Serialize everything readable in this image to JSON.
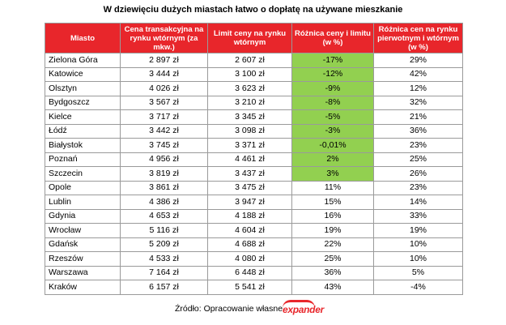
{
  "title": "W dziewięciu dużych miastach łatwo o dopłatę na używane mieszkanie",
  "colors": {
    "header_bg": "#e8262b",
    "header_text": "#ffffff",
    "highlight_green": "#92d050",
    "brand_red": "#e8262b",
    "border": "#9a9a9a"
  },
  "table": {
    "headers": [
      "Miasto",
      "Cena transakcyjna na rynku wtórnym (za mkw.)",
      "Limit ceny na rynku wtórnym",
      "Różnica ceny i limitu (w %)",
      "Różnica cen na rynku pierwotnym i wtórnym (w %)"
    ],
    "rows": [
      {
        "city": "Zielona Góra",
        "price": "2 897 zł",
        "limit": "2 607 zł",
        "diff": "-17%",
        "diff_primary": "29%",
        "highlight": true
      },
      {
        "city": "Katowice",
        "price": "3 444 zł",
        "limit": "3 100 zł",
        "diff": "-12%",
        "diff_primary": "42%",
        "highlight": true
      },
      {
        "city": "Olsztyn",
        "price": "4 026 zł",
        "limit": "3 623 zł",
        "diff": "-9%",
        "diff_primary": "12%",
        "highlight": true
      },
      {
        "city": "Bydgoszcz",
        "price": "3 567 zł",
        "limit": "3 210 zł",
        "diff": "-8%",
        "diff_primary": "32%",
        "highlight": true
      },
      {
        "city": "Kielce",
        "price": "3 717 zł",
        "limit": "3 345 zł",
        "diff": "-5%",
        "diff_primary": "21%",
        "highlight": true
      },
      {
        "city": "Łódź",
        "price": "3 442 zł",
        "limit": "3 098 zł",
        "diff": "-3%",
        "diff_primary": "36%",
        "highlight": true
      },
      {
        "city": "Białystok",
        "price": "3 745 zł",
        "limit": "3 371 zł",
        "diff": "-0,01%",
        "diff_primary": "23%",
        "highlight": true
      },
      {
        "city": "Poznań",
        "price": "4 956 zł",
        "limit": "4 461 zł",
        "diff": "2%",
        "diff_primary": "25%",
        "highlight": true
      },
      {
        "city": "Szczecin",
        "price": "3 819 zł",
        "limit": "3 437 zł",
        "diff": "3%",
        "diff_primary": "26%",
        "highlight": true
      },
      {
        "city": "Opole",
        "price": "3 861 zł",
        "limit": "3 475 zł",
        "diff": "11%",
        "diff_primary": "23%",
        "highlight": false
      },
      {
        "city": "Lublin",
        "price": "4 386 zł",
        "limit": "3 947 zł",
        "diff": "15%",
        "diff_primary": "14%",
        "highlight": false
      },
      {
        "city": "Gdynia",
        "price": "4 653 zł",
        "limit": "4 188 zł",
        "diff": "16%",
        "diff_primary": "33%",
        "highlight": false
      },
      {
        "city": "Wrocław",
        "price": "5 116 zł",
        "limit": "4 604 zł",
        "diff": "19%",
        "diff_primary": "19%",
        "highlight": false
      },
      {
        "city": "Gdańsk",
        "price": "5 209 zł",
        "limit": "4 688 zł",
        "diff": "22%",
        "diff_primary": "10%",
        "highlight": false
      },
      {
        "city": "Rzeszów",
        "price": "4 533 zł",
        "limit": "4 080 zł",
        "diff": "25%",
        "diff_primary": "10%",
        "highlight": false
      },
      {
        "city": "Warszawa",
        "price": "7 164 zł",
        "limit": "6 448 zł",
        "diff": "36%",
        "diff_primary": "5%",
        "highlight": false
      },
      {
        "city": "Kraków",
        "price": "6 157 zł",
        "limit": "5 541 zł",
        "diff": "43%",
        "diff_primary": "-4%",
        "highlight": false
      }
    ]
  },
  "footer": {
    "source": "Źródło: Opracowanie własne",
    "logo_text": "expander"
  }
}
